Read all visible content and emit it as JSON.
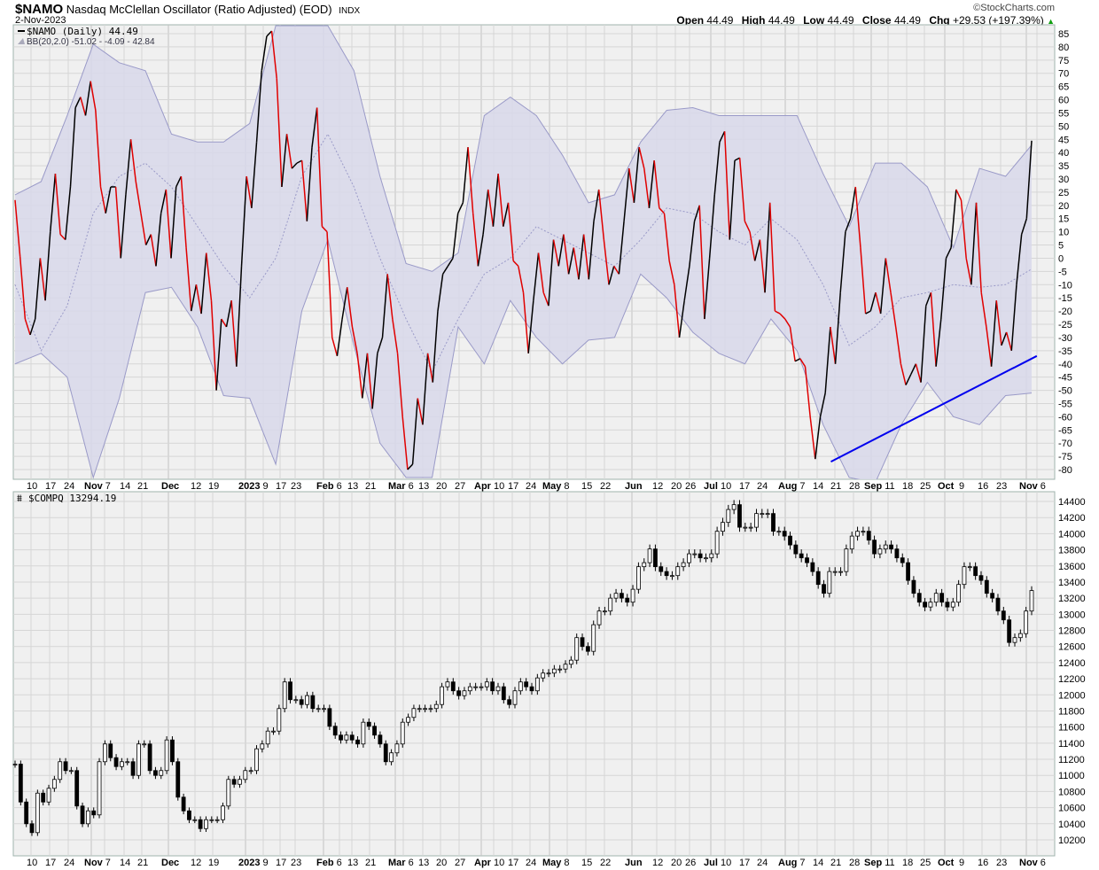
{
  "header": {
    "symbol": "$NAMO",
    "name": "Nasdaq McClellan Oscillator (Ratio Adjusted) (EOD)",
    "exchange": "INDX",
    "date": "2-Nov-2023",
    "brand": "©StockCharts.com",
    "open_label": "Open",
    "open": "44.49",
    "high_label": "High",
    "high": "44.49",
    "low_label": "Low",
    "low": "44.49",
    "close_label": "Close",
    "close": "44.49",
    "chg_label": "Chg",
    "chg": "+29.53 (+197.39%)",
    "chg_icon": "triangle-up-icon"
  },
  "colors": {
    "up": "#000000",
    "down": "#e00000",
    "band_fill": "#d8d8ea",
    "band_line": "#9a9ac8",
    "trend": "#0000ee",
    "plot_bg": "#f0f0f0",
    "grid": "#d6d6d6"
  },
  "chart_data": [
    {
      "type": "line",
      "legend": [
        "$NAMO (Daily) 44.49",
        "BB(20,2.0) -51.02 - -4.09 - 42.84"
      ],
      "xlim": [
        "2022-10-03",
        "2023-11-02"
      ],
      "ylim": [
        -80,
        85
      ],
      "yticks": [
        85,
        80,
        75,
        70,
        65,
        60,
        55,
        50,
        45,
        40,
        35,
        30,
        25,
        20,
        15,
        10,
        5,
        0,
        -5,
        -10,
        -15,
        -20,
        -25,
        -30,
        -35,
        -40,
        -45,
        -50,
        -55,
        -60,
        -65,
        -70,
        -75,
        -80
      ],
      "grid": true,
      "series": [
        {
          "name": "$NAMO",
          "values": [
            22,
            0.5,
            -23,
            -29,
            -23,
            0,
            -16,
            10,
            32,
            9,
            7,
            27,
            57,
            61,
            54,
            67,
            56,
            27,
            17,
            27,
            27,
            0,
            24,
            45,
            29,
            17,
            5,
            9,
            -3,
            17,
            26,
            0,
            27,
            31,
            4,
            -20,
            -10,
            -21,
            2,
            -16,
            -50,
            -23,
            -26,
            -16,
            -41,
            -3,
            31,
            19,
            44,
            71,
            84,
            86,
            68,
            27,
            47,
            34,
            36,
            37,
            14,
            42,
            57,
            12,
            10,
            -30,
            -37,
            -23,
            -11,
            -26,
            -36,
            -53,
            -36,
            -57,
            -36,
            -30,
            -6,
            -23,
            -36,
            -60,
            -80,
            -78,
            -53,
            -63,
            -36,
            -47,
            -20,
            -6,
            -3,
            0,
            17,
            21,
            42,
            17,
            -3,
            9,
            26,
            12,
            32,
            12,
            21,
            -1,
            -3,
            -13,
            -36,
            -16,
            2,
            -13,
            -18,
            7,
            -3,
            9,
            -6,
            4,
            -8,
            9,
            -8,
            14,
            26,
            7,
            -10,
            -3,
            -6,
            14,
            34,
            21,
            42,
            34,
            19,
            37,
            19,
            17,
            -1,
            -10,
            -30,
            -16,
            -3,
            14,
            20,
            -23,
            0,
            24,
            44,
            48,
            7,
            37,
            38,
            14,
            10,
            -1,
            7,
            -13,
            21,
            -20,
            -21,
            -23,
            -26,
            -39,
            -38,
            -41,
            -60,
            -76,
            -60,
            -51,
            -26,
            -40,
            -13,
            10,
            15,
            27,
            4,
            -21,
            -20,
            -13,
            -21,
            0,
            -13,
            -26,
            -40,
            -48,
            -44,
            -40,
            -47,
            -18,
            -13,
            -41,
            -23,
            0,
            4,
            26,
            22,
            0,
            -10,
            21,
            -13,
            -26,
            -41,
            -16,
            -33,
            -28,
            -35,
            -10,
            9,
            15,
            44.49
          ]
        },
        {
          "name": "BB upper",
          "values": [
            24,
            29,
            54,
            81,
            74,
            71,
            47,
            44,
            44,
            51,
            88,
            88,
            88,
            71,
            31,
            -2,
            -5,
            2,
            54,
            61,
            54,
            39,
            21,
            24,
            44,
            56,
            57,
            54,
            54,
            54,
            54,
            32,
            12,
            36,
            36,
            27,
            4,
            34,
            31,
            42.84
          ]
        },
        {
          "name": "BB middle",
          "values": [
            -10,
            -35,
            -18,
            17,
            31,
            36,
            27,
            12,
            -3,
            -15,
            0,
            31,
            47,
            27,
            0,
            -23,
            -43,
            -23,
            -6,
            0,
            12,
            7,
            2,
            -3,
            7,
            19,
            17,
            10,
            5,
            15,
            7,
            -10,
            -33,
            -26,
            -15,
            -13,
            -10,
            -11,
            -10,
            -4.09
          ]
        },
        {
          "name": "BB lower",
          "values": [
            -40,
            -36,
            -45,
            -83,
            -53,
            -13,
            -11,
            -26,
            -52,
            -53,
            -78,
            -20,
            7,
            -33,
            -70,
            -83,
            -83,
            -26,
            -40,
            -16,
            -30,
            -40,
            -31,
            -30,
            -6,
            -15,
            -28,
            -36,
            -40,
            -23,
            -35,
            -63,
            -83,
            -85,
            -63,
            -47,
            -60,
            -63,
            -52,
            -51.02
          ]
        }
      ],
      "trendline": [
        [
          "2023-08-16",
          -77
        ],
        [
          "2023-11-04",
          -37
        ]
      ]
    },
    {
      "type": "candlestick",
      "legend": "$COMPQ 13294.19",
      "xlim": [
        "2022-10-03",
        "2023-11-02"
      ],
      "ylim": [
        10200,
        14400
      ],
      "yticks": [
        14400,
        14200,
        14000,
        13800,
        13600,
        13400,
        13200,
        13000,
        12800,
        12600,
        12400,
        12200,
        12000,
        11800,
        11600,
        11400,
        11200,
        11000,
        10800,
        10600,
        10400,
        10200
      ],
      "grid": true,
      "close": [
        11140,
        10670,
        10400,
        10290,
        10780,
        10670,
        10840,
        10950,
        11170,
        11060,
        11060,
        10620,
        10400,
        10560,
        10510,
        11170,
        11390,
        11220,
        11110,
        11170,
        11170,
        11000,
        11390,
        11390,
        11060,
        11000,
        11060,
        11440,
        11170,
        10730,
        10560,
        10450,
        10450,
        10340,
        10450,
        10450,
        10450,
        10620,
        10950,
        10890,
        10950,
        11060,
        11060,
        11330,
        11390,
        11550,
        11550,
        11830,
        12160,
        11940,
        11940,
        11880,
        11990,
        11830,
        11830,
        11830,
        11610,
        11500,
        11440,
        11500,
        11440,
        11390,
        11660,
        11610,
        11500,
        11390,
        11170,
        11280,
        11390,
        11660,
        11720,
        11830,
        11830,
        11830,
        11830,
        11880,
        12100,
        12160,
        12050,
        11990,
        12050,
        12100,
        12100,
        12100,
        12160,
        12050,
        12100,
        11940,
        11880,
        12050,
        12160,
        12100,
        12050,
        12210,
        12270,
        12270,
        12320,
        12320,
        12380,
        12430,
        12710,
        12600,
        12540,
        12870,
        13040,
        13040,
        13200,
        13260,
        13200,
        13150,
        13310,
        13590,
        13640,
        13810,
        13590,
        13530,
        13480,
        13480,
        13590,
        13640,
        13750,
        13750,
        13700,
        13700,
        13750,
        14030,
        14140,
        14300,
        14360,
        14080,
        14080,
        14080,
        14250,
        14250,
        14250,
        14030,
        14030,
        13970,
        13860,
        13750,
        13700,
        13640,
        13530,
        13370,
        13260,
        13530,
        13530,
        13530,
        13810,
        13970,
        14030,
        14030,
        13920,
        13750,
        13810,
        13860,
        13810,
        13700,
        13640,
        13420,
        13260,
        13150,
        13090,
        13150,
        13260,
        13150,
        13090,
        13150,
        13370,
        13590,
        13590,
        13480,
        13420,
        13260,
        13200,
        13040,
        12930,
        12650,
        12710,
        12760,
        13040,
        13294.19
      ]
    }
  ],
  "xaxis_labels": [
    {
      "text": "10",
      "bold": false
    },
    {
      "text": "17",
      "bold": false
    },
    {
      "text": "24",
      "bold": false
    },
    {
      "text": "Nov",
      "bold": true
    },
    {
      "text": "7",
      "bold": false
    },
    {
      "text": "14",
      "bold": false
    },
    {
      "text": "21",
      "bold": false
    },
    {
      "text": "Dec",
      "bold": true
    },
    {
      "text": "12",
      "bold": false
    },
    {
      "text": "19",
      "bold": false
    },
    {
      "text": "2023",
      "bold": true
    },
    {
      "text": "9",
      "bold": false
    },
    {
      "text": "17",
      "bold": false
    },
    {
      "text": "23",
      "bold": false
    },
    {
      "text": "Feb",
      "bold": true
    },
    {
      "text": "6",
      "bold": false
    },
    {
      "text": "13",
      "bold": false
    },
    {
      "text": "21",
      "bold": false
    },
    {
      "text": "Mar",
      "bold": true
    },
    {
      "text": "6",
      "bold": false
    },
    {
      "text": "13",
      "bold": false
    },
    {
      "text": "20",
      "bold": false
    },
    {
      "text": "27",
      "bold": false
    },
    {
      "text": "Apr",
      "bold": true
    },
    {
      "text": "10",
      "bold": false
    },
    {
      "text": "17",
      "bold": false
    },
    {
      "text": "24",
      "bold": false
    },
    {
      "text": "May",
      "bold": true
    },
    {
      "text": "8",
      "bold": false
    },
    {
      "text": "15",
      "bold": false
    },
    {
      "text": "22",
      "bold": false
    },
    {
      "text": "Jun",
      "bold": true
    },
    {
      "text": "12",
      "bold": false
    },
    {
      "text": "20",
      "bold": false
    },
    {
      "text": "26",
      "bold": false
    },
    {
      "text": "Jul",
      "bold": true
    },
    {
      "text": "10",
      "bold": false
    },
    {
      "text": "17",
      "bold": false
    },
    {
      "text": "24",
      "bold": false
    },
    {
      "text": "Aug",
      "bold": true
    },
    {
      "text": "7",
      "bold": false
    },
    {
      "text": "14",
      "bold": false
    },
    {
      "text": "21",
      "bold": false
    },
    {
      "text": "28",
      "bold": false
    },
    {
      "text": "Sep",
      "bold": true
    },
    {
      "text": "11",
      "bold": false
    },
    {
      "text": "18",
      "bold": false
    },
    {
      "text": "25",
      "bold": false
    },
    {
      "text": "Oct",
      "bold": true
    },
    {
      "text": "9",
      "bold": false
    },
    {
      "text": "16",
      "bold": false
    },
    {
      "text": "23",
      "bold": false
    },
    {
      "text": "Nov",
      "bold": true
    },
    {
      "text": "6",
      "bold": false
    }
  ]
}
